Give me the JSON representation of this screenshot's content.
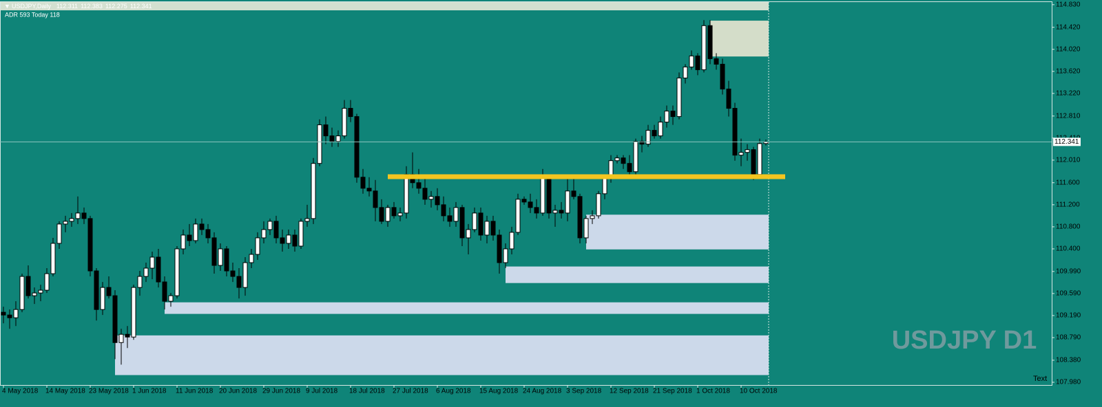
{
  "chart_data": {
    "type": "candlestick",
    "header": "USDJPY,Daily",
    "indicator": "ADR 593  Today 118",
    "watermark": "USDJPY D1",
    "corner_text": "Text",
    "background": "#0f8478",
    "up_color": "#ffffff",
    "down_color": "#000000",
    "categories": [
      "4 May 2018",
      null,
      null,
      null,
      null,
      null,
      null,
      "14 May 2018",
      null,
      null,
      null,
      null,
      null,
      null,
      "23 May 2018",
      null,
      null,
      null,
      null,
      null,
      null,
      "1 Jun 2018",
      null,
      null,
      null,
      null,
      null,
      null,
      "11 Jun 2018",
      null,
      null,
      null,
      null,
      null,
      null,
      "20 Jun 2018",
      null,
      null,
      null,
      null,
      null,
      null,
      "29 Jun 2018",
      null,
      null,
      null,
      null,
      null,
      null,
      "9 Jul 2018",
      null,
      null,
      null,
      null,
      null,
      null,
      "18 Jul 2018",
      null,
      null,
      null,
      null,
      null,
      null,
      "27 Jul 2018",
      null,
      null,
      null,
      null,
      null,
      null,
      "6 Aug 2018",
      null,
      null,
      null,
      null,
      null,
      null,
      "15 Aug 2018",
      null,
      null,
      null,
      null,
      null,
      null,
      "24 Aug 2018",
      null,
      null,
      null,
      null,
      null,
      null,
      "3 Sep 2018",
      null,
      null,
      null,
      null,
      null,
      null,
      "12 Sep 2018",
      null,
      null,
      null,
      null,
      null,
      null,
      "21 Sep 2018",
      null,
      null,
      null,
      null,
      null,
      null,
      "1 Oct 2018",
      null,
      null,
      null,
      null,
      null,
      null,
      "10 Oct 2018",
      null,
      null,
      null,
      null
    ],
    "open": [
      109.25,
      109.2,
      109.15,
      109.3,
      109.9,
      109.55,
      109.6,
      109.65,
      109.95,
      110.5,
      110.85,
      110.9,
      110.95,
      111.05,
      110.95,
      110.0,
      109.3,
      109.7,
      109.55,
      108.7,
      108.85,
      108.8,
      109.7,
      109.9,
      110.05,
      110.25,
      109.8,
      109.45,
      109.55,
      110.4,
      110.65,
      110.55,
      110.85,
      110.75,
      110.6,
      110.1,
      110.4,
      110.0,
      109.9,
      109.7,
      110.15,
      110.3,
      110.6,
      110.75,
      110.9,
      110.6,
      110.5,
      110.65,
      110.45,
      110.9,
      110.95,
      111.95,
      112.65,
      112.45,
      112.35,
      112.45,
      112.95,
      112.8,
      111.7,
      111.5,
      111.45,
      111.15,
      110.9,
      111.15,
      111.0,
      111.05,
      111.75,
      111.6,
      111.5,
      111.3,
      111.35,
      111.2,
      111.0,
      110.9,
      111.15,
      110.6,
      110.75,
      111.05,
      110.65,
      110.9,
      110.65,
      110.15,
      110.4,
      110.7,
      111.3,
      111.25,
      111.15,
      111.05,
      111.7,
      111.05,
      111.1,
      111.05,
      111.45,
      111.35,
      110.6,
      110.95,
      111.0,
      111.4,
      111.7,
      112.0,
      112.05,
      111.95,
      111.8,
      112.35,
      112.3,
      112.55,
      112.45,
      112.7,
      112.9,
      112.8,
      113.5,
      113.7,
      113.9,
      113.65,
      114.45,
      113.85,
      113.75,
      113.3,
      112.95,
      112.1,
      112.15,
      112.2,
      111.75,
      112.311
    ],
    "high": [
      109.35,
      109.3,
      109.45,
      109.95,
      110.1,
      109.7,
      109.75,
      110.05,
      110.6,
      110.9,
      111.0,
      111.05,
      111.35,
      111.15,
      111.0,
      110.05,
      109.8,
      109.9,
      109.65,
      108.95,
      109.0,
      109.75,
      110.0,
      110.15,
      110.35,
      110.4,
      109.9,
      109.6,
      110.45,
      110.75,
      110.85,
      110.95,
      110.95,
      110.85,
      110.7,
      110.5,
      110.45,
      110.15,
      110.05,
      110.25,
      110.4,
      110.7,
      110.9,
      110.95,
      111.0,
      110.75,
      110.75,
      110.75,
      110.95,
      111.2,
      112.05,
      112.75,
      112.8,
      112.6,
      112.55,
      113.1,
      113.1,
      112.85,
      111.85,
      111.7,
      111.65,
      111.3,
      111.2,
      111.25,
      111.15,
      111.9,
      112.15,
      111.85,
      111.7,
      111.45,
      111.5,
      111.35,
      111.15,
      111.25,
      111.2,
      110.85,
      111.15,
      111.15,
      111.0,
      111.0,
      110.75,
      110.5,
      110.8,
      111.4,
      111.35,
      111.4,
      111.3,
      111.85,
      111.75,
      111.2,
      111.25,
      111.7,
      111.7,
      111.4,
      111.0,
      111.1,
      111.45,
      111.75,
      112.1,
      112.1,
      112.1,
      112.1,
      112.4,
      112.45,
      112.65,
      112.65,
      112.8,
      113.0,
      113.0,
      113.6,
      113.75,
      114.0,
      113.95,
      114.55,
      114.55,
      113.95,
      113.85,
      113.45,
      113.05,
      112.4,
      112.3,
      112.25,
      112.4,
      112.383
    ],
    "low": [
      109.05,
      108.95,
      109.0,
      109.25,
      109.5,
      109.4,
      109.45,
      109.6,
      109.9,
      110.4,
      110.7,
      110.8,
      110.85,
      110.85,
      109.9,
      109.1,
      109.2,
      109.5,
      108.4,
      108.3,
      108.6,
      108.75,
      109.55,
      109.8,
      109.85,
      109.7,
      109.3,
      109.35,
      109.5,
      110.3,
      110.45,
      110.5,
      110.65,
      110.5,
      109.95,
      110.0,
      109.9,
      109.8,
      109.5,
      109.55,
      110.05,
      110.2,
      110.5,
      110.65,
      110.5,
      110.35,
      110.4,
      110.35,
      110.4,
      110.8,
      110.85,
      111.9,
      112.3,
      112.25,
      112.25,
      112.4,
      112.7,
      111.6,
      111.4,
      111.35,
      110.9,
      110.85,
      110.8,
      110.95,
      110.9,
      110.95,
      111.5,
      111.4,
      111.2,
      111.15,
      111.1,
      110.9,
      110.8,
      110.8,
      110.45,
      110.3,
      110.7,
      110.55,
      110.5,
      110.55,
      109.95,
      110.05,
      110.3,
      110.65,
      111.2,
      111.05,
      110.95,
      111.0,
      110.95,
      110.8,
      110.95,
      110.9,
      111.3,
      110.5,
      110.5,
      110.85,
      110.95,
      111.3,
      111.6,
      111.95,
      111.85,
      111.7,
      111.75,
      112.15,
      112.25,
      112.4,
      112.4,
      112.6,
      112.65,
      112.75,
      113.4,
      113.65,
      113.55,
      113.6,
      113.75,
      113.65,
      113.2,
      112.8,
      112.0,
      111.9,
      112.0,
      111.65,
      111.7,
      112.275
    ],
    "close": [
      109.2,
      109.15,
      109.3,
      109.9,
      109.55,
      109.6,
      109.65,
      109.95,
      110.5,
      110.85,
      110.9,
      110.95,
      111.05,
      110.95,
      110.0,
      109.3,
      109.7,
      109.55,
      108.7,
      108.85,
      108.8,
      109.7,
      109.9,
      110.05,
      110.25,
      109.8,
      109.45,
      109.55,
      110.4,
      110.65,
      110.55,
      110.85,
      110.75,
      110.6,
      110.1,
      110.4,
      110.0,
      109.9,
      109.7,
      110.15,
      110.3,
      110.6,
      110.75,
      110.9,
      110.6,
      110.5,
      110.65,
      110.45,
      110.9,
      110.95,
      111.95,
      112.65,
      112.45,
      112.35,
      112.45,
      112.95,
      112.8,
      111.7,
      111.5,
      111.45,
      111.15,
      110.9,
      111.15,
      111.0,
      111.05,
      111.75,
      111.6,
      111.5,
      111.3,
      111.35,
      111.2,
      111.0,
      110.9,
      111.15,
      110.6,
      110.75,
      111.05,
      110.65,
      110.9,
      110.65,
      110.15,
      110.4,
      110.7,
      111.3,
      111.25,
      111.15,
      111.05,
      111.7,
      111.05,
      111.1,
      111.05,
      111.45,
      111.35,
      110.6,
      110.95,
      111.0,
      111.4,
      111.7,
      112.0,
      112.05,
      111.95,
      111.8,
      112.35,
      112.3,
      112.55,
      112.45,
      112.7,
      112.9,
      112.8,
      113.5,
      113.7,
      113.9,
      113.65,
      114.45,
      113.85,
      113.75,
      113.3,
      112.95,
      112.1,
      112.15,
      112.2,
      111.75,
      112.31,
      112.341
    ],
    "current_price": 112.341,
    "zones": [
      {
        "start": 114,
        "top": 114.54,
        "bottom": 113.89,
        "color": "#d4ddc9"
      },
      {
        "start": 94,
        "top": 111.02,
        "bottom": 110.39,
        "color": "#ccd9ea"
      },
      {
        "start": 81,
        "top": 110.08,
        "bottom": 109.78,
        "color": "#ccd9ea"
      },
      {
        "start": 26,
        "top": 109.43,
        "bottom": 109.22,
        "color": "#ccd9ea"
      },
      {
        "start": 18,
        "top": 108.83,
        "bottom": 108.11,
        "color": "#ccd9ea"
      }
    ],
    "level": {
      "start": 62,
      "value": 111.71,
      "color": "#f3c520"
    },
    "ylim": [
      107.93,
      114.89
    ],
    "yticks": [
      {
        "value": 107.98,
        "label": "107.980"
      },
      {
        "value": 108.38,
        "label": "108.380"
      },
      {
        "value": 108.79,
        "label": "108.790"
      },
      {
        "value": 109.19,
        "label": "109.190"
      },
      {
        "value": 109.59,
        "label": "109.590"
      },
      {
        "value": 109.99,
        "label": "109.990"
      },
      {
        "value": 110.4,
        "label": "110.400"
      },
      {
        "value": 110.8,
        "label": "110.800"
      },
      {
        "value": 111.2,
        "label": "111.200"
      },
      {
        "value": 111.6,
        "label": "111.600"
      },
      {
        "value": 112.01,
        "label": "112.010"
      },
      {
        "value": 112.41,
        "label": "112.410"
      },
      {
        "value": 112.81,
        "label": "112.810"
      },
      {
        "value": 113.22,
        "label": "113.220"
      },
      {
        "value": 113.62,
        "label": "113.620"
      },
      {
        "value": 114.02,
        "label": "114.020"
      },
      {
        "value": 114.42,
        "label": "114.420"
      },
      {
        "value": 114.83,
        "label": "114.830"
      }
    ]
  }
}
